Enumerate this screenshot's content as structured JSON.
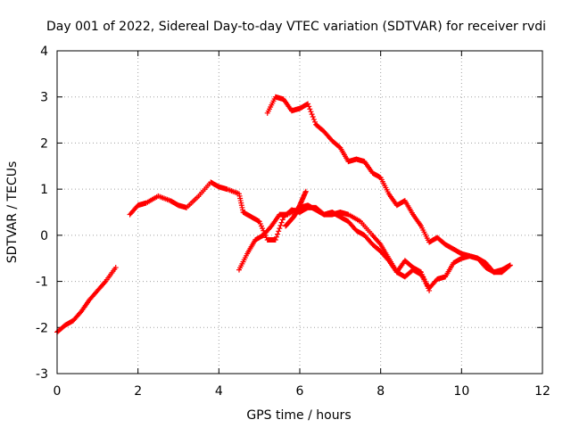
{
  "chart_data": {
    "type": "scatter",
    "title": "Day 001 of 2022, Sidereal Day-to-day VTEC variation (SDTVAR) for receiver rvdi",
    "xlabel": "GPS time / hours",
    "ylabel": "SDTVAR / TECUs",
    "xlim": [
      0,
      12
    ],
    "ylim": [
      -3,
      4
    ],
    "xticks": [
      0,
      2,
      4,
      6,
      8,
      10,
      12
    ],
    "yticks": [
      -3,
      -2,
      -1,
      0,
      1,
      2,
      3,
      4
    ],
    "grid": true,
    "marker": "plus",
    "color": "#ff0000",
    "series": [
      {
        "name": "seg1",
        "x": [
          0.0,
          0.2,
          0.4,
          0.6,
          0.8,
          1.0,
          1.2,
          1.45
        ],
        "y": [
          -2.1,
          -1.95,
          -1.85,
          -1.65,
          -1.4,
          -1.2,
          -1.0,
          -0.7
        ]
      },
      {
        "name": "seg2",
        "x": [
          1.8,
          2.0,
          2.2,
          2.5,
          2.8,
          3.0,
          3.2,
          3.5,
          3.8,
          4.0,
          4.2,
          4.5,
          4.6,
          4.8,
          5.0,
          5.2,
          5.4,
          5.6,
          5.8,
          6.0,
          6.2,
          6.4,
          6.6,
          6.8,
          7.0,
          7.2,
          7.5,
          7.8,
          8.0,
          8.2,
          8.4,
          8.6,
          8.8,
          9.0,
          9.2
        ],
        "y": [
          0.45,
          0.65,
          0.7,
          0.85,
          0.75,
          0.65,
          0.6,
          0.85,
          1.15,
          1.05,
          1.0,
          0.9,
          0.5,
          0.4,
          0.3,
          -0.1,
          -0.1,
          0.4,
          0.55,
          0.5,
          0.6,
          0.6,
          0.45,
          0.45,
          0.5,
          0.45,
          0.3,
          0.0,
          -0.2,
          -0.5,
          -0.8,
          -0.55,
          -0.7,
          -0.8,
          -1.2
        ]
      },
      {
        "name": "seg3",
        "x": [
          4.5,
          4.7,
          4.9,
          5.1,
          5.3,
          5.5,
          5.7,
          6.0,
          6.2,
          6.4,
          6.6,
          6.8,
          7.0,
          7.2,
          7.4,
          7.6,
          7.8,
          8.0,
          8.2,
          8.4,
          8.6,
          8.8,
          9.0,
          9.2,
          9.4,
          9.6,
          9.8,
          10.0,
          10.2,
          10.4,
          10.6,
          10.8,
          11.0,
          11.2
        ],
        "y": [
          -0.75,
          -0.4,
          -0.1,
          0.0,
          0.2,
          0.45,
          0.45,
          0.6,
          0.65,
          0.55,
          0.45,
          0.5,
          0.4,
          0.3,
          0.1,
          0.0,
          -0.2,
          -0.35,
          -0.55,
          -0.8,
          -0.9,
          -0.75,
          -0.85,
          -1.15,
          -0.95,
          -0.9,
          -0.6,
          -0.5,
          -0.45,
          -0.5,
          -0.7,
          -0.8,
          -0.75,
          -0.65
        ]
      },
      {
        "name": "seg4",
        "x": [
          5.2,
          5.4,
          5.6,
          5.8,
          6.0,
          6.2,
          6.4,
          6.6,
          6.8,
          7.0,
          7.2,
          7.4,
          7.6,
          7.8,
          8.0,
          8.2,
          8.4,
          8.6,
          8.8,
          9.0,
          9.2,
          9.4,
          9.6,
          9.8,
          10.0,
          10.2,
          10.4,
          10.6,
          10.8,
          11.0,
          11.2
        ],
        "y": [
          2.65,
          3.0,
          2.95,
          2.7,
          2.75,
          2.85,
          2.4,
          2.25,
          2.05,
          1.9,
          1.6,
          1.65,
          1.6,
          1.35,
          1.25,
          0.9,
          0.65,
          0.75,
          0.45,
          0.2,
          -0.15,
          -0.05,
          -0.2,
          -0.3,
          -0.4,
          -0.45,
          -0.5,
          -0.6,
          -0.8,
          -0.8,
          -0.65
        ]
      },
      {
        "name": "seg5",
        "x": [
          5.65,
          5.75,
          5.85,
          5.95,
          6.05,
          6.15
        ],
        "y": [
          0.2,
          0.3,
          0.4,
          0.55,
          0.75,
          0.95
        ]
      }
    ]
  }
}
